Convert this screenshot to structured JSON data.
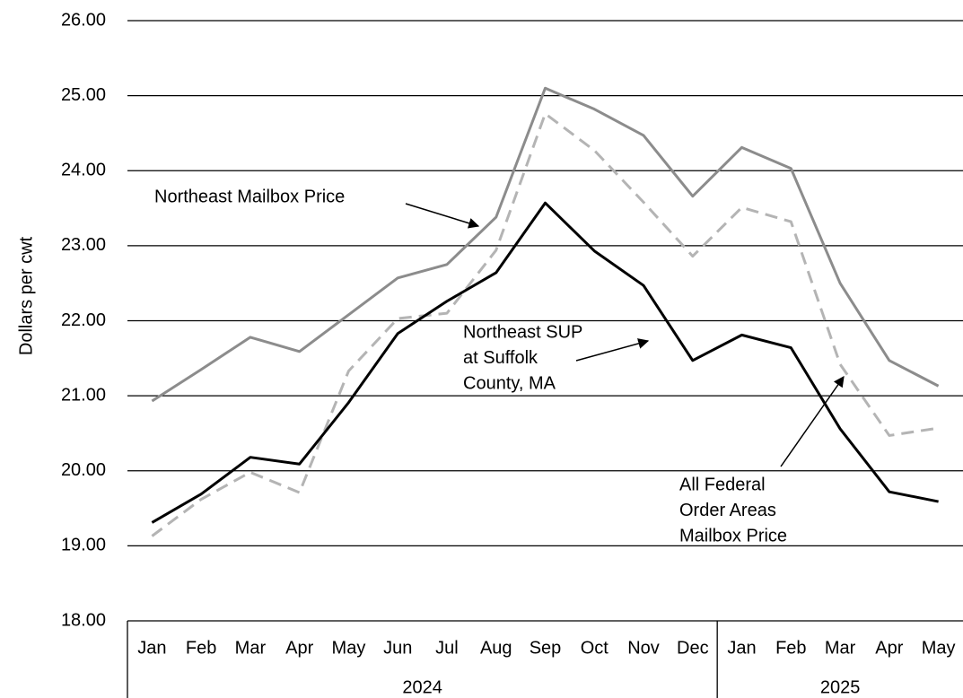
{
  "chart_data": {
    "type": "line",
    "y_label": "Dollars per cwt",
    "groups": [
      {
        "label": "2024",
        "categories": [
          "Jan",
          "Feb",
          "Mar",
          "Apr",
          "May",
          "Jun",
          "Jul",
          "Aug",
          "Sep",
          "Oct",
          "Nov",
          "Dec"
        ]
      },
      {
        "label": "2025",
        "categories": [
          "Jan",
          "Feb",
          "Mar",
          "Apr",
          "May"
        ]
      }
    ],
    "series": [
      {
        "name": [
          "Northeast Mailbox Price"
        ],
        "color": "#8c8c8c",
        "dash": false,
        "values": [
          20.93,
          21.35,
          21.78,
          21.59,
          22.08,
          22.57,
          22.75,
          23.38,
          25.1,
          24.82,
          24.47,
          23.66,
          24.31,
          24.03,
          22.5,
          21.47,
          21.13
        ]
      },
      {
        "name": [
          "Northeast SUP",
          "at Suffolk",
          "County, MA"
        ],
        "color": "#000000",
        "dash": false,
        "values": [
          19.31,
          19.69,
          20.18,
          20.09,
          20.91,
          21.83,
          22.26,
          22.64,
          23.57,
          22.93,
          22.47,
          21.47,
          21.81,
          21.64,
          20.56,
          19.72,
          19.59
        ]
      },
      {
        "name": [
          "All Federal",
          "Order Areas",
          "Mailbox Price"
        ],
        "color": "#b4b4b4",
        "dash": true,
        "values": [
          19.13,
          19.62,
          19.98,
          19.71,
          21.33,
          22.03,
          22.1,
          22.94,
          24.76,
          24.27,
          23.58,
          22.86,
          23.51,
          23.32,
          21.42,
          20.47,
          20.57
        ]
      }
    ],
    "ylim": [
      18,
      26
    ],
    "yticks": [
      {
        "value": 18,
        "label": "18.00"
      },
      {
        "value": 19,
        "label": "19.00"
      },
      {
        "value": 20,
        "label": "20.00"
      },
      {
        "value": 21,
        "label": "21.00"
      },
      {
        "value": 22,
        "label": "22.00"
      },
      {
        "value": 23,
        "label": "23.00"
      },
      {
        "value": 24,
        "label": "24.00"
      },
      {
        "value": 25,
        "label": "25.00"
      },
      {
        "value": 26,
        "label": "26.00"
      }
    ],
    "grid": true
  }
}
